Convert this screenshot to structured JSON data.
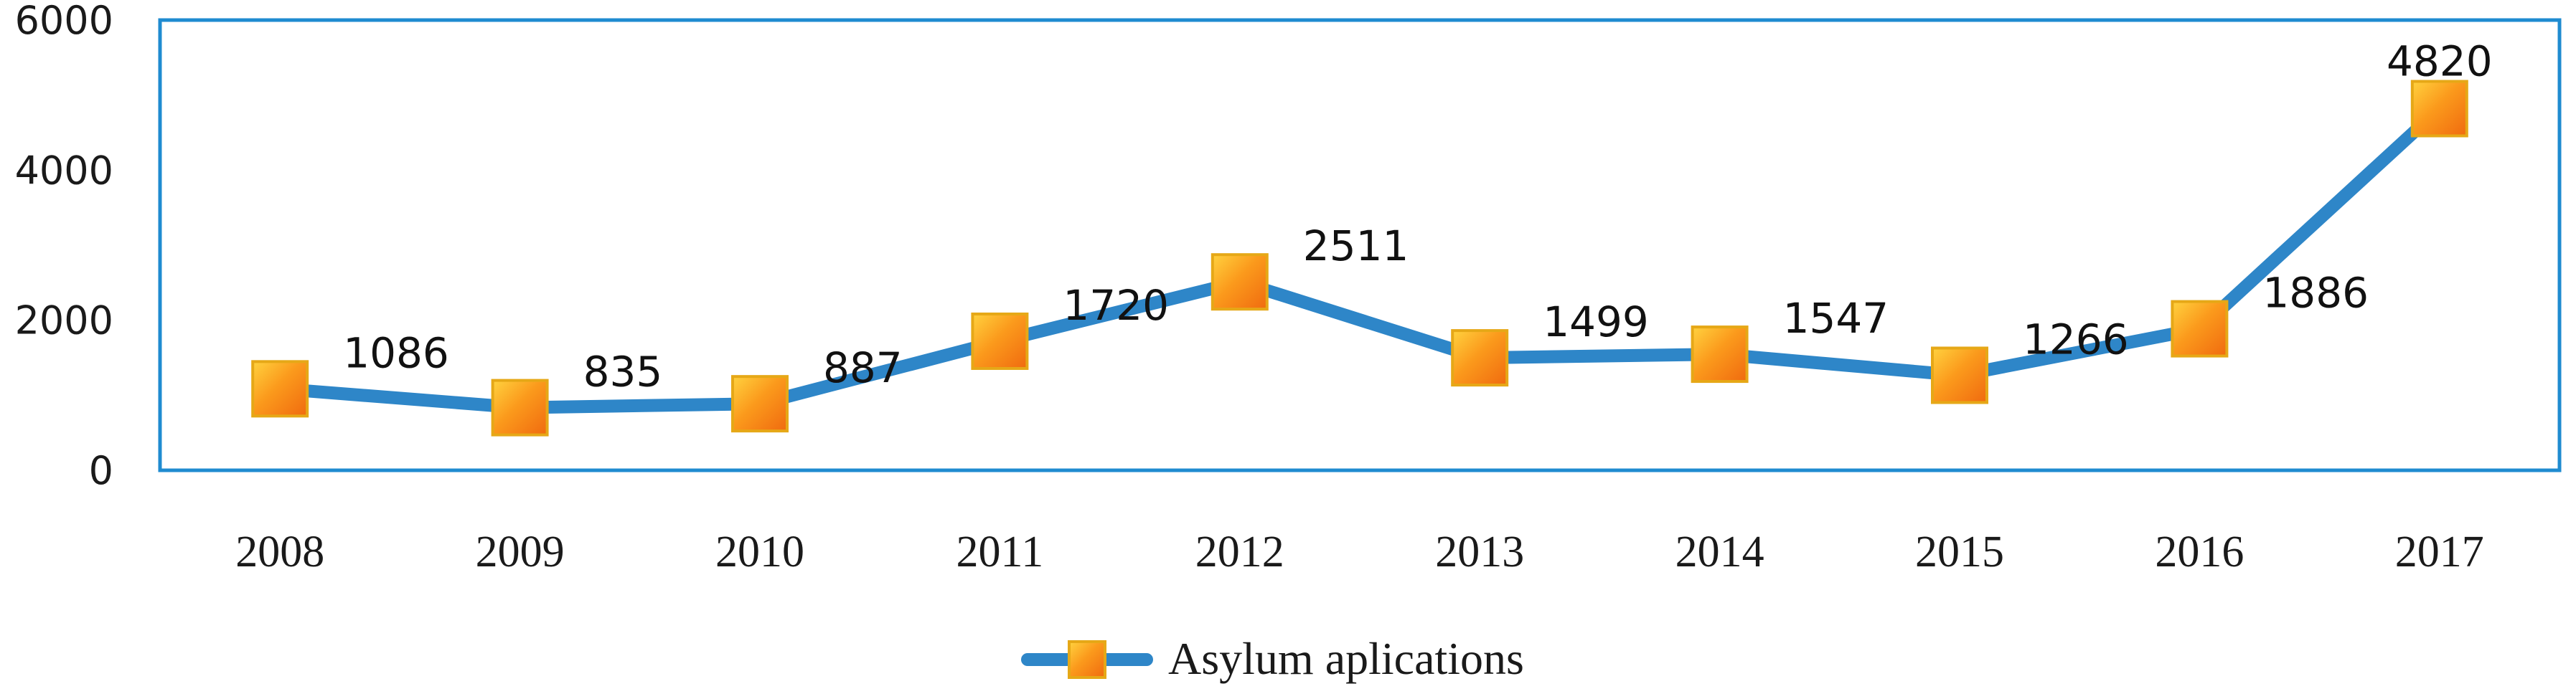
{
  "chart_data": {
    "type": "line",
    "title": "",
    "xlabel": "",
    "ylabel": "",
    "categories": [
      "2008",
      "2009",
      "2010",
      "2011",
      "2012",
      "2013",
      "2014",
      "2015",
      "2016",
      "2017"
    ],
    "series": [
      {
        "name": "Asylum aplications",
        "values": [
          1086,
          835,
          887,
          1720,
          2511,
          1499,
          1547,
          1266,
          1886,
          4820
        ]
      }
    ],
    "ylim": [
      0,
      6000
    ],
    "yticks": [
      0,
      2000,
      4000,
      6000
    ],
    "grid": false,
    "legend_position": "bottom",
    "colors": {
      "line": "#2e86c8",
      "marker_fill": "#f7941d",
      "marker_edge": "#e6a817",
      "frame": "#1f8bd0"
    }
  }
}
